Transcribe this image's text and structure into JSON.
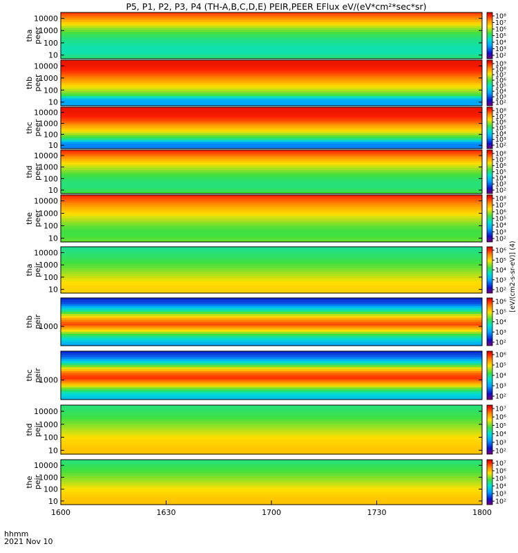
{
  "chart_data": {
    "type": "heatmap",
    "title": "P5, P1, P2, P3, P4 (TH-A,B,C,D,E) PEIR,PEER EFlux eV/(eV*cm²*sec*sr)",
    "x_axis": {
      "tick_labels": [
        "1600",
        "1630",
        "1700",
        "1730",
        "1800"
      ],
      "label_time": "hhmm",
      "label_date": "2021 Nov 10",
      "xlim_minutes": [
        0,
        120
      ]
    },
    "colorbar_label": "[eV/(cm2-s-sr-eV)] (4)",
    "panels": [
      {
        "name": "tha peer",
        "probe": "tha",
        "species": "peer",
        "scale": "log",
        "ylim": [
          5,
          30000
        ],
        "yticks": [
          "10",
          "100",
          "1000",
          "10000"
        ],
        "cbar_ticks": [
          "10⁸",
          "10⁷",
          "10⁶",
          "10⁵",
          "10⁴",
          "10³",
          "10²"
        ]
      },
      {
        "name": "thb peer",
        "probe": "thb",
        "species": "peer",
        "scale": "log",
        "ylim": [
          5,
          30000
        ],
        "yticks": [
          "10",
          "100",
          "1000",
          "10000"
        ],
        "cbar_ticks": [
          "10⁹",
          "10⁸",
          "10⁷",
          "10⁶",
          "10⁵",
          "10⁴",
          "10³",
          "10²"
        ]
      },
      {
        "name": "thc peer",
        "probe": "thc",
        "species": "peer",
        "scale": "log",
        "ylim": [
          5,
          30000
        ],
        "yticks": [
          "10",
          "100",
          "1000",
          "10000"
        ],
        "cbar_ticks": [
          "10⁸",
          "10⁷",
          "10⁶",
          "10⁵",
          "10⁴",
          "10³",
          "10²"
        ]
      },
      {
        "name": "thd peer",
        "probe": "thd",
        "species": "peer",
        "scale": "log",
        "ylim": [
          5,
          30000
        ],
        "yticks": [
          "10",
          "100",
          "1000",
          "10000"
        ],
        "cbar_ticks": [
          "10⁸",
          "10⁷",
          "10⁶",
          "10⁵",
          "10⁴",
          "10³",
          "10²"
        ]
      },
      {
        "name": "the peer",
        "probe": "the",
        "species": "peer",
        "scale": "log",
        "ylim": [
          5,
          30000
        ],
        "yticks": [
          "10",
          "100",
          "1000",
          "10000"
        ],
        "cbar_ticks": [
          "10⁸",
          "10⁷",
          "10⁶",
          "10⁵",
          "10⁴",
          "10³",
          "10²"
        ]
      },
      {
        "name": "tha peir",
        "probe": "tha",
        "species": "peir",
        "scale": "log",
        "ylim": [
          5,
          30000
        ],
        "yticks": [
          "10",
          "100",
          "1000",
          "10000"
        ],
        "cbar_ticks": [
          "10⁶",
          "10⁵",
          "10⁴",
          "10³",
          "10²"
        ]
      },
      {
        "name": "thb peir",
        "probe": "thb",
        "species": "peir",
        "scale": "log",
        "ylim": [
          100,
          30000
        ],
        "yticks": [
          "1000"
        ],
        "cbar_ticks": [
          "10⁶",
          "10⁵",
          "10⁴",
          "10³",
          "10²"
        ]
      },
      {
        "name": "thc peir",
        "probe": "thc",
        "species": "peir",
        "scale": "log",
        "ylim": [
          100,
          30000
        ],
        "yticks": [
          "1000"
        ],
        "cbar_ticks": [
          "10⁶",
          "10⁵",
          "10⁴",
          "10³",
          "10²"
        ]
      },
      {
        "name": "thd peir",
        "probe": "thd",
        "species": "peir",
        "scale": "log",
        "ylim": [
          5,
          30000
        ],
        "yticks": [
          "10",
          "100",
          "1000",
          "10000"
        ],
        "cbar_ticks": [
          "10⁷",
          "10⁶",
          "10⁵",
          "10⁴",
          "10³",
          "10²"
        ]
      },
      {
        "name": "the peir",
        "probe": "the",
        "species": "peir",
        "scale": "log",
        "ylim": [
          5,
          30000
        ],
        "yticks": [
          "10",
          "100",
          "1000",
          "10000"
        ],
        "cbar_ticks": [
          "10⁷",
          "10⁶",
          "10⁵",
          "10⁴",
          "10³",
          "10²"
        ]
      }
    ]
  }
}
